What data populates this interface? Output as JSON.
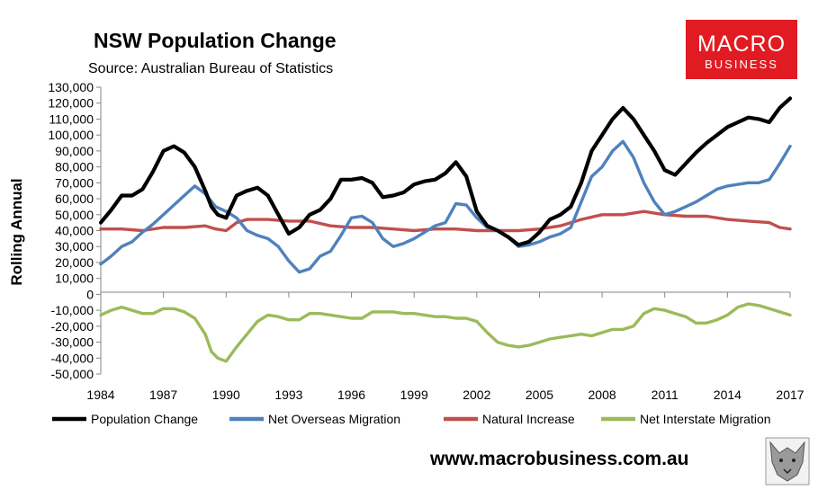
{
  "chart_data": {
    "type": "line",
    "title": "NSW Population Change",
    "subtitle": "Source: Australian Bureau of Statistics",
    "ylabel": "Rolling Annual",
    "xlabel": "",
    "ylim": [
      -50000,
      130000
    ],
    "xlim": [
      1984,
      2017
    ],
    "grid": false,
    "legend_position": "bottom",
    "y_ticks": [
      -50000,
      -40000,
      -30000,
      -20000,
      -10000,
      0,
      10000,
      20000,
      30000,
      40000,
      50000,
      60000,
      70000,
      80000,
      90000,
      100000,
      110000,
      120000,
      130000
    ],
    "y_tick_labels": [
      "-50,000",
      "-40,000",
      "-30,000",
      "-20,000",
      "-10,000",
      "0",
      "10,000",
      "20,000",
      "30,000",
      "40,000",
      "50,000",
      "60,000",
      "70,000",
      "80,000",
      "90,000",
      "100,000",
      "110,000",
      "120,000",
      "130,000"
    ],
    "x_ticks": [
      1984,
      1987,
      1990,
      1993,
      1996,
      1999,
      2002,
      2005,
      2008,
      2011,
      2014,
      2017
    ],
    "x_tick_labels": [
      "1984",
      "1987",
      "1990",
      "1993",
      "1996",
      "1999",
      "2002",
      "2005",
      "2008",
      "2011",
      "2014",
      "2017"
    ],
    "series": [
      {
        "name": "Population Change",
        "color": "#000000",
        "x": [
          1984,
          1984.5,
          1985,
          1985.5,
          1986,
          1986.5,
          1987,
          1987.5,
          1988,
          1988.5,
          1989,
          1989.3,
          1989.6,
          1990,
          1990.5,
          1991,
          1991.5,
          1992,
          1992.5,
          1993,
          1993.5,
          1994,
          1994.5,
          1995,
          1995.5,
          1996,
          1996.5,
          1997,
          1997.5,
          1998,
          1998.5,
          1999,
          1999.5,
          2000,
          2000.5,
          2001,
          2001.5,
          2002,
          2002.5,
          2003,
          2003.5,
          2004,
          2004.5,
          2005,
          2005.5,
          2006,
          2006.5,
          2007,
          2007.5,
          2008,
          2008.5,
          2009,
          2009.5,
          2010,
          2010.5,
          2011,
          2011.5,
          2012,
          2012.5,
          2013,
          2013.5,
          2014,
          2014.5,
          2015,
          2015.5,
          2016,
          2016.5,
          2017
        ],
        "values": [
          45000,
          53000,
          62000,
          62000,
          66000,
          77000,
          90000,
          93000,
          89000,
          80000,
          65000,
          55000,
          50000,
          48000,
          62000,
          65000,
          67000,
          62000,
          50000,
          38000,
          42000,
          50000,
          53000,
          60000,
          72000,
          72000,
          73000,
          70000,
          61000,
          62000,
          64000,
          69000,
          71000,
          72000,
          76000,
          83000,
          74000,
          52000,
          43000,
          40000,
          36000,
          31000,
          33000,
          39000,
          47000,
          50000,
          55000,
          70000,
          90000,
          100000,
          110000,
          117000,
          110000,
          100000,
          90000,
          78000,
          75000,
          82000,
          89000,
          95000,
          100000,
          105000,
          108000,
          111000,
          110000,
          108000,
          117000,
          123000
        ]
      },
      {
        "name": "Net Overseas Migration",
        "color": "#4f81bd",
        "x": [
          1984,
          1984.5,
          1985,
          1985.5,
          1986,
          1986.5,
          1987,
          1987.5,
          1988,
          1988.5,
          1989,
          1989.5,
          1990,
          1990.5,
          1991,
          1991.5,
          1992,
          1992.5,
          1993,
          1993.5,
          1994,
          1994.5,
          1995,
          1995.5,
          1996,
          1996.5,
          1997,
          1997.5,
          1998,
          1998.5,
          1999,
          1999.5,
          2000,
          2000.5,
          2001,
          2001.5,
          2002,
          2002.5,
          2003,
          2003.5,
          2004,
          2004.5,
          2005,
          2005.5,
          2006,
          2006.5,
          2007,
          2007.5,
          2008,
          2008.5,
          2009,
          2009.5,
          2010,
          2010.5,
          2011,
          2011.5,
          2012,
          2012.5,
          2013,
          2013.5,
          2014,
          2014.5,
          2015,
          2015.5,
          2016,
          2016.5,
          2017
        ],
        "values": [
          19000,
          24000,
          30000,
          33000,
          39000,
          44000,
          50000,
          56000,
          62000,
          68000,
          63000,
          55000,
          52000,
          48000,
          40000,
          37000,
          35000,
          30000,
          21000,
          14000,
          16000,
          24000,
          27000,
          37000,
          48000,
          49000,
          45000,
          35000,
          30000,
          32000,
          35000,
          39000,
          43000,
          45000,
          57000,
          56000,
          48000,
          42000,
          40000,
          36000,
          30000,
          31000,
          33000,
          36000,
          38000,
          42000,
          58000,
          74000,
          80000,
          90000,
          96000,
          86000,
          70000,
          58000,
          50000,
          52000,
          55000,
          58000,
          62000,
          66000,
          68000,
          69000,
          70000,
          70000,
          72000,
          82000,
          93000
        ]
      },
      {
        "name": "Natural Increase",
        "color": "#c0504d",
        "x": [
          1984,
          1985,
          1986,
          1987,
          1988,
          1989,
          1989.5,
          1990,
          1990.5,
          1991,
          1992,
          1993,
          1994,
          1995,
          1996,
          1997,
          1998,
          1999,
          2000,
          2001,
          2002,
          2003,
          2004,
          2005,
          2006,
          2007,
          2008,
          2009,
          2010,
          2011,
          2012,
          2013,
          2014,
          2015,
          2016,
          2016.5,
          2017
        ],
        "values": [
          41000,
          41000,
          40000,
          42000,
          42000,
          43000,
          41000,
          40000,
          45000,
          47000,
          47000,
          46000,
          46000,
          43000,
          42000,
          42000,
          41000,
          40000,
          41000,
          41000,
          40000,
          40000,
          40000,
          41000,
          43000,
          47000,
          50000,
          50000,
          52000,
          50000,
          49000,
          49000,
          47000,
          46000,
          45000,
          42000,
          41000
        ]
      },
      {
        "name": "Net Interstate Migration",
        "color": "#9bbb59",
        "x": [
          1984,
          1984.5,
          1985,
          1985.5,
          1986,
          1986.5,
          1987,
          1987.5,
          1988,
          1988.5,
          1989,
          1989.3,
          1989.6,
          1990,
          1990.5,
          1991,
          1991.5,
          1992,
          1992.5,
          1993,
          1993.5,
          1994,
          1994.5,
          1995,
          1995.5,
          1996,
          1996.5,
          1997,
          1997.5,
          1998,
          1998.5,
          1999,
          1999.5,
          2000,
          2000.5,
          2001,
          2001.5,
          2002,
          2002.5,
          2003,
          2003.5,
          2004,
          2004.5,
          2005,
          2005.5,
          2006,
          2006.5,
          2007,
          2007.5,
          2008,
          2008.5,
          2009,
          2009.5,
          2010,
          2010.5,
          2011,
          2011.5,
          2012,
          2012.5,
          2013,
          2013.5,
          2014,
          2014.5,
          2015,
          2015.5,
          2016,
          2016.5,
          2017
        ],
        "values": [
          -13000,
          -10000,
          -8000,
          -10000,
          -12000,
          -12000,
          -9000,
          -9000,
          -11000,
          -15000,
          -25000,
          -36000,
          -40000,
          -42000,
          -33000,
          -25000,
          -17000,
          -13000,
          -14000,
          -16000,
          -16000,
          -12000,
          -12000,
          -13000,
          -14000,
          -15000,
          -15000,
          -11000,
          -11000,
          -11000,
          -12000,
          -12000,
          -13000,
          -14000,
          -14000,
          -15000,
          -15000,
          -17000,
          -24000,
          -30000,
          -32000,
          -33000,
          -32000,
          -30000,
          -28000,
          -27000,
          -26000,
          -25000,
          -26000,
          -24000,
          -22000,
          -22000,
          -20000,
          -12000,
          -9000,
          -10000,
          -12000,
          -14000,
          -18000,
          -18000,
          -16000,
          -13000,
          -8000,
          -6000,
          -7000,
          -9000,
          -11000,
          -13000
        ]
      }
    ]
  },
  "footer": {
    "url": "www.macrobusiness.com.au"
  },
  "logo": {
    "line1": "MACRO",
    "line2": "BUSINESS",
    "bg_color": "#e11b22"
  }
}
